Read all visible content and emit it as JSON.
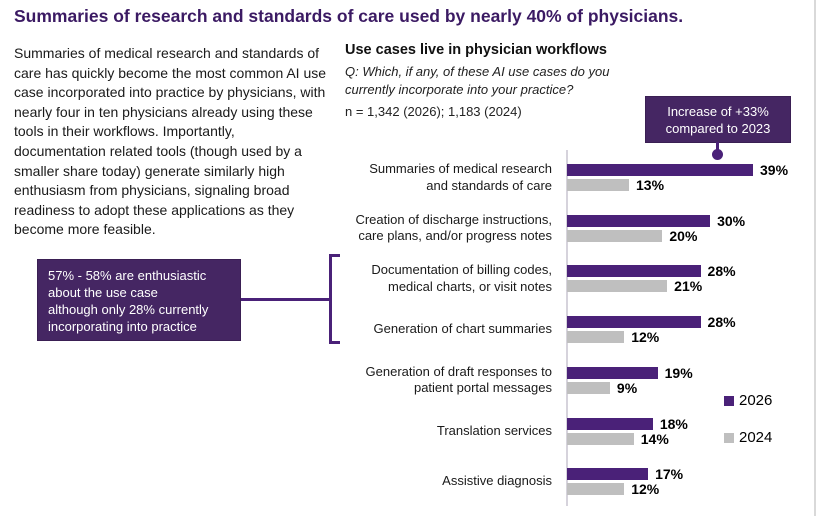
{
  "header": {
    "title": "Summaries of research and standards of care used by nearly 40% of physicians."
  },
  "intro": {
    "text": "Summaries of medical research and standards of care has quickly become the most common AI use case incorporated into practice by physicians, with nearly four in ten physicians already using these tools in their workflows. Importantly, documentation related tools (though used by a smaller share today) generate similarly high enthusiasm from physicians, signaling broad readiness to adopt these applications as they become more feasible."
  },
  "callouts": {
    "enthusiasm": {
      "text": "57% - 58% are enthusiastic\nabout the use case\nalthough only 28% currently\nincorporating into practice"
    },
    "increase": {
      "text": "Increase of +33%\ncompared to 2023"
    }
  },
  "chart": {
    "title": "Use cases live in physician workflows",
    "question": "Q: Which, if any, of these AI use cases do you\ncurrently incorporate into your practice?",
    "sample": "n = 1,342 (2026); 1,183 (2024)"
  },
  "chart_data": {
    "type": "bar",
    "orientation": "horizontal",
    "title": "Use cases live in physician workflows",
    "categories": [
      "Summaries of medical research\nand standards of care",
      "Creation of discharge instructions,\ncare plans, and/or progress notes",
      "Documentation of billing codes,\nmedical charts, or visit notes",
      "Generation of chart summaries",
      "Generation of draft responses to\npatient portal messages",
      "Translation services",
      "Assistive diagnosis"
    ],
    "series": [
      {
        "name": "2026",
        "color": "#4a2178",
        "values": [
          39,
          30,
          28,
          28,
          19,
          18,
          17
        ]
      },
      {
        "name": "2024",
        "color": "#bfbfbf",
        "values": [
          13,
          20,
          21,
          12,
          9,
          14,
          12
        ]
      }
    ],
    "value_suffix": "%",
    "xlim": [
      0,
      42
    ],
    "grid": false,
    "legend_position": "right"
  },
  "colors": {
    "brand_purple": "#4a2178",
    "callout_purple": "#452663",
    "title_purple": "#3b1a63",
    "bar_gray": "#bfbfbf",
    "axis_gray": "#d6d3dc",
    "edge_gray": "#d9d9d9"
  }
}
